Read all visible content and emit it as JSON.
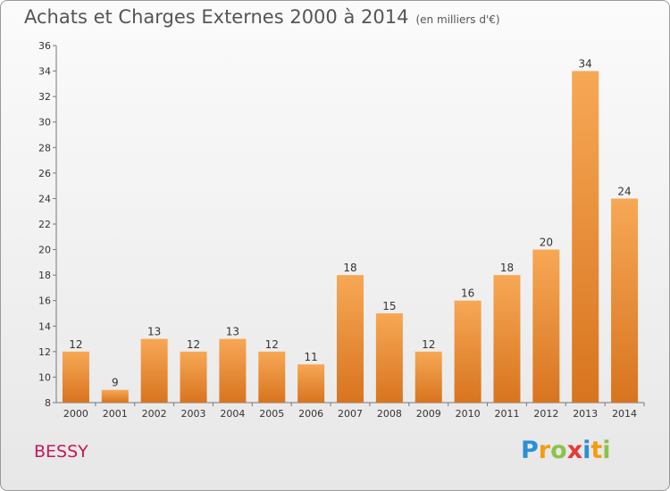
{
  "header": {
    "title": "Achats et Charges Externes 2000 à 2014",
    "subtitle": "(en milliers d'€)"
  },
  "footer": {
    "city": "BESSY",
    "logo": [
      "P",
      "r",
      "o",
      "x",
      "i",
      "t",
      "i"
    ],
    "logo_colors": [
      "#2b8fd6",
      "#f39c12",
      "#8bc34a",
      "#e53935",
      "#2b8fd6",
      "#f39c12",
      "#8bc34a"
    ]
  },
  "chart_data": {
    "type": "bar",
    "categories": [
      "2000",
      "2001",
      "2002",
      "2003",
      "2004",
      "2005",
      "2006",
      "2007",
      "2008",
      "2009",
      "2010",
      "2011",
      "2012",
      "2013",
      "2014"
    ],
    "values": [
      12,
      9,
      13,
      12,
      13,
      12,
      11,
      18,
      15,
      12,
      16,
      18,
      20,
      34,
      24
    ],
    "ylim": [
      8,
      36
    ],
    "yticks": [
      8,
      10,
      12,
      14,
      16,
      18,
      20,
      22,
      24,
      26,
      28,
      30,
      32,
      34,
      36
    ],
    "grid": false,
    "bar_color_top": "#f7a855",
    "bar_color_bottom": "#d8741f"
  }
}
